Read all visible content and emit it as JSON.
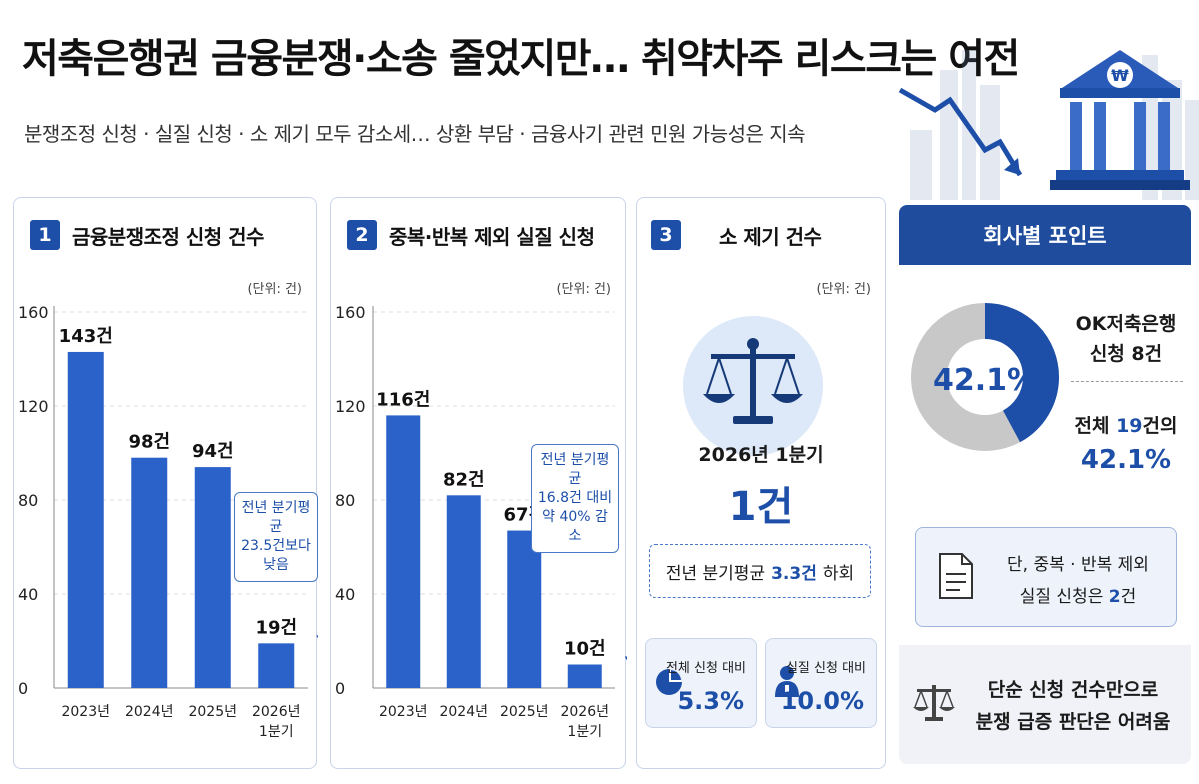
{
  "header": {
    "title": "저축은행권 금융분쟁·소송 줄었지만… 취약차주 리스크는 여전",
    "subtitle": "분쟁조정 신청 · 실질 신청 · 소 제기 모두 감소세…  상환 부담 · 금융사기 관련 민원 가능성은 지속",
    "hero_symbol": "₩"
  },
  "colors": {
    "accent": "#1d4fa8",
    "bar": "#2a62c9",
    "donut_gray": "#c8c8c8",
    "header_dark": "#1f4c9c"
  },
  "card1": {
    "num": "1",
    "title": "금융분쟁조정 신청 건수",
    "unit": "(단위: 건)",
    "callout": [
      "전년 분기평균",
      "23.5건보다",
      "낮음"
    ]
  },
  "card2": {
    "num": "2",
    "title": "중복·반복 제외 실질 신청",
    "unit": "(단위: 건)",
    "callout": [
      "전년 분기평균",
      "16.8건 대비",
      "약 40% 감소"
    ]
  },
  "card3": {
    "num": "3",
    "title": "소 제기 건수",
    "unit": "(단위: 건)",
    "period": "2026년 1분기",
    "value": "1건",
    "compare_prefix": "전년 분기평균",
    "compare_value": "3.3건",
    "compare_suffix": "하회",
    "mini1_label": "전체 신청 대비",
    "mini1_value": "5.3%",
    "mini2_label": "실질 신청 대비",
    "mini2_value": "10.0%",
    "icons": [
      "scales-icon",
      "pie-icon",
      "person-icon"
    ]
  },
  "side": {
    "header": "회사별 포인트",
    "donut_pct": "42.1%",
    "donut_share": 0.421,
    "company_line1": "OK저축은행",
    "company_line2": "신청 8건",
    "total_prefix": "전체",
    "total_value": "19",
    "total_suffix": "건의",
    "total_pct": "42.1%",
    "note_line1": "단, 중복 · 반복 제외",
    "note_prefix": "실질 신청은",
    "note_value": "2",
    "note_suffix": "건",
    "footer_line1": "단순 신청 건수만으로",
    "footer_line2": "분쟁 급증 판단은 어려움"
  },
  "chart_data": [
    {
      "type": "bar",
      "title": "금융분쟁조정 신청 건수",
      "categories": [
        "2023년",
        "2024년",
        "2025년",
        "2026년\n1분기"
      ],
      "values": [
        143,
        98,
        94,
        19
      ],
      "value_labels": [
        "143건",
        "98건",
        "94건",
        "19건"
      ],
      "yticks": [
        0,
        40,
        80,
        120,
        160
      ],
      "ylim": [
        0,
        160
      ],
      "unit": "건"
    },
    {
      "type": "bar",
      "title": "중복·반복 제외 실질 신청",
      "categories": [
        "2023년",
        "2024년",
        "2025년",
        "2026년\n1분기"
      ],
      "values": [
        116,
        82,
        67,
        10
      ],
      "value_labels": [
        "116건",
        "82건",
        "67건",
        "10건"
      ],
      "yticks": [
        0,
        40,
        80,
        120,
        160
      ],
      "ylim": [
        0,
        160
      ],
      "unit": "건"
    }
  ]
}
